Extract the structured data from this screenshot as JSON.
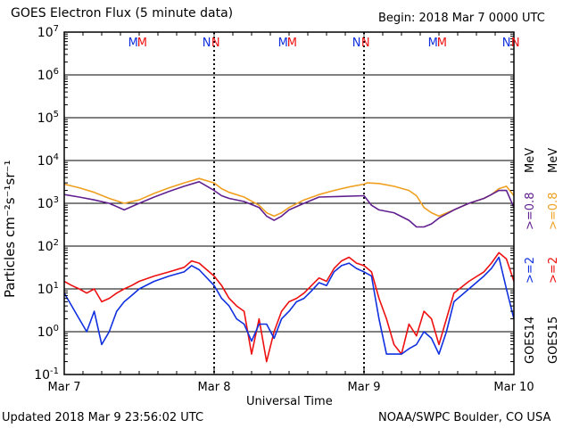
{
  "header": {
    "title": "GOES Electron Flux (5 minute data)",
    "begin": "Begin: 2018 Mar 7 0000 UTC"
  },
  "footer": {
    "updated": "Updated 2018 Mar  9 23:56:02 UTC",
    "credit": "NOAA/SWPC Boulder, CO USA"
  },
  "colors": {
    "goes14": "#1030e0",
    "goes15": "#ee1010",
    "goes14_08": "#602090",
    "goes15_08": "#f0a020"
  },
  "legend": {
    "goes14": "GOES14",
    "goes15": "GOES15",
    "g14_hi": ">=2",
    "g15_hi": ">=2",
    "g14_lo": ">=0.8",
    "g15_lo": ">=0.8",
    "mev1": "MeV",
    "mev2": "MeV"
  },
  "chart_data": {
    "type": "line",
    "title": "GOES Electron Flux (5 minute data)",
    "xlabel": "Universal Time",
    "ylabel": "Particles cm⁻²s⁻¹sr⁻¹",
    "yscale": "log",
    "ylim": [
      0.1,
      10000000
    ],
    "xlim_days": [
      0,
      3
    ],
    "x_tick_labels": [
      "Mar 7",
      "Mar 8",
      "Mar 9",
      "Mar 10"
    ],
    "y_tick_exponents": [
      -1,
      0,
      1,
      2,
      3,
      4,
      5,
      6,
      7
    ],
    "threshold_line": 1000,
    "markers": [
      {
        "label": "M",
        "day": 0.46,
        "series": "GOES14"
      },
      {
        "label": "M",
        "day": 0.52,
        "series": "GOES15"
      },
      {
        "label": "N",
        "day": 0.95,
        "series": "GOES14"
      },
      {
        "label": "N",
        "day": 1.01,
        "series": "GOES15"
      },
      {
        "label": "M",
        "day": 1.46,
        "series": "GOES14"
      },
      {
        "label": "M",
        "day": 1.52,
        "series": "GOES15"
      },
      {
        "label": "N",
        "day": 1.95,
        "series": "GOES14"
      },
      {
        "label": "N",
        "day": 2.01,
        "series": "GOES15"
      },
      {
        "label": "M",
        "day": 2.46,
        "series": "GOES14"
      },
      {
        "label": "M",
        "day": 2.52,
        "series": "GOES15"
      },
      {
        "label": "N",
        "day": 2.95,
        "series": "GOES14"
      },
      {
        "label": "N",
        "day": 3.01,
        "series": "GOES15"
      }
    ],
    "series": [
      {
        "name": "GOES15 >=0.8 MeV",
        "color": "#f0a020",
        "x": [
          0.0,
          0.1,
          0.2,
          0.3,
          0.4,
          0.5,
          0.6,
          0.7,
          0.8,
          0.9,
          1.0,
          1.05,
          1.1,
          1.2,
          1.3,
          1.35,
          1.4,
          1.45,
          1.5,
          1.6,
          1.7,
          1.8,
          1.9,
          2.0,
          2.02,
          2.1,
          2.2,
          2.3,
          2.35,
          2.4,
          2.45,
          2.5,
          2.6,
          2.7,
          2.8,
          2.85,
          2.9,
          2.95,
          3.0
        ],
        "y": [
          2800,
          2300,
          1800,
          1300,
          1000,
          1200,
          1700,
          2300,
          3000,
          3800,
          3000,
          2200,
          1800,
          1400,
          900,
          600,
          500,
          600,
          800,
          1200,
          1600,
          2000,
          2400,
          2800,
          3000,
          2900,
          2500,
          2000,
          1500,
          800,
          600,
          500,
          700,
          1000,
          1300,
          1600,
          2200,
          2500,
          1500
        ]
      },
      {
        "name": "GOES14 >=0.8 MeV",
        "color": "#602090",
        "x": [
          0.0,
          0.1,
          0.2,
          0.3,
          0.4,
          0.5,
          0.6,
          0.7,
          0.8,
          0.9,
          1.0,
          1.05,
          1.1,
          1.2,
          1.3,
          1.35,
          1.4,
          1.45,
          1.5,
          1.6,
          1.7,
          2.0,
          2.05,
          2.1,
          2.2,
          2.3,
          2.35,
          2.4,
          2.45,
          2.5,
          2.6,
          2.7,
          2.8,
          2.85,
          2.9,
          2.95,
          3.0
        ],
        "y": [
          1600,
          1400,
          1200,
          1000,
          700,
          1000,
          1400,
          1900,
          2500,
          3200,
          2000,
          1500,
          1300,
          1100,
          800,
          500,
          400,
          500,
          700,
          1000,
          1400,
          1500,
          900,
          700,
          600,
          400,
          280,
          280,
          330,
          450,
          700,
          1000,
          1300,
          1600,
          2000,
          2000,
          800
        ]
      },
      {
        "name": "GOES15 >=2 MeV",
        "color": "#ee1010",
        "x": [
          0.0,
          0.05,
          0.1,
          0.15,
          0.2,
          0.25,
          0.3,
          0.35,
          0.4,
          0.45,
          0.5,
          0.6,
          0.7,
          0.8,
          0.85,
          0.9,
          1.0,
          1.05,
          1.1,
          1.15,
          1.2,
          1.25,
          1.3,
          1.35,
          1.4,
          1.45,
          1.5,
          1.55,
          1.6,
          1.65,
          1.7,
          1.75,
          1.8,
          1.85,
          1.9,
          1.95,
          2.0,
          2.05,
          2.1,
          2.15,
          2.2,
          2.25,
          2.3,
          2.35,
          2.4,
          2.45,
          2.5,
          2.55,
          2.6,
          2.7,
          2.8,
          2.85,
          2.9,
          2.95,
          3.0
        ],
        "y": [
          15,
          12,
          10,
          8,
          10,
          5,
          6,
          8,
          10,
          12,
          15,
          20,
          25,
          32,
          45,
          40,
          20,
          12,
          6,
          4,
          3,
          0.3,
          2,
          0.2,
          1,
          3,
          5,
          6,
          8,
          12,
          18,
          15,
          30,
          45,
          55,
          40,
          35,
          25,
          6,
          2,
          0.5,
          0.3,
          1.5,
          0.8,
          3,
          2,
          0.5,
          2,
          8,
          15,
          25,
          40,
          70,
          50,
          15
        ]
      },
      {
        "name": "GOES14 >=2 MeV",
        "color": "#1030e0",
        "x": [
          0.0,
          0.05,
          0.1,
          0.15,
          0.2,
          0.25,
          0.3,
          0.35,
          0.4,
          0.45,
          0.5,
          0.6,
          0.7,
          0.8,
          0.85,
          0.9,
          1.0,
          1.05,
          1.1,
          1.15,
          1.2,
          1.25,
          1.3,
          1.35,
          1.4,
          1.45,
          1.5,
          1.55,
          1.6,
          1.65,
          1.7,
          1.75,
          1.8,
          1.85,
          1.9,
          1.95,
          2.0,
          2.05,
          2.1,
          2.15,
          2.2,
          2.25,
          2.3,
          2.35,
          2.4,
          2.45,
          2.5,
          2.55,
          2.6,
          2.7,
          2.8,
          2.85,
          2.9,
          2.95,
          3.0
        ],
        "y": [
          8,
          4,
          2,
          1,
          3,
          0.5,
          1,
          3,
          5,
          7,
          10,
          15,
          20,
          25,
          35,
          28,
          12,
          6,
          4,
          2,
          1.5,
          0.6,
          1.5,
          1.5,
          0.7,
          2,
          3,
          5,
          6,
          9,
          14,
          12,
          25,
          35,
          40,
          30,
          25,
          20,
          2,
          0.3,
          0.3,
          0.3,
          0.4,
          0.5,
          1,
          0.7,
          0.3,
          1,
          5,
          10,
          20,
          30,
          55,
          10,
          2
        ]
      }
    ]
  }
}
